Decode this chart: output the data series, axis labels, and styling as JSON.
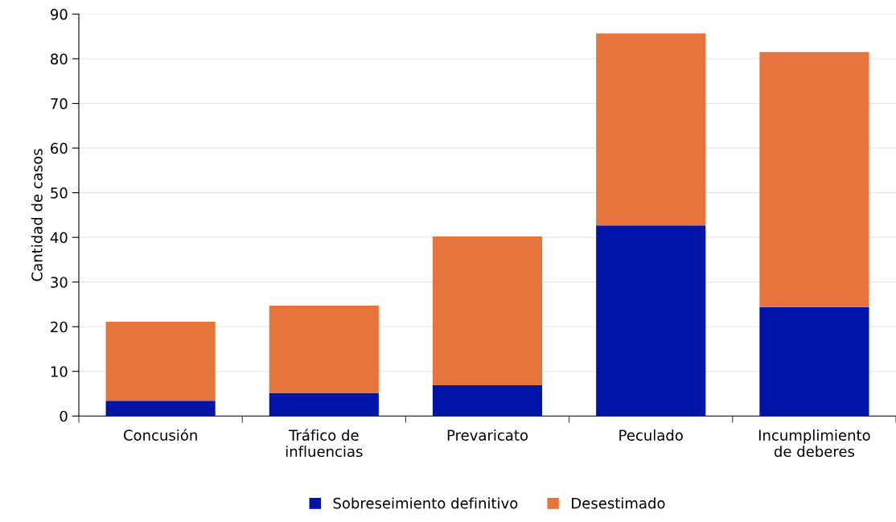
{
  "chart_data": {
    "type": "bar",
    "stacked": true,
    "ylabel": "Cantidad de casos",
    "categories": [
      "Concusión",
      "Tráfico de\ninfluencias",
      "Prevaricato",
      "Peculado",
      "Incumplimiento\nde deberes"
    ],
    "series": [
      {
        "name": "Sobreseimiento definitivo",
        "color": "#0014a8",
        "values": [
          3.4,
          5.2,
          6.9,
          42.7,
          24.4
        ]
      },
      {
        "name": "Desestimado",
        "color": "#e8743d",
        "values": [
          17.7,
          19.5,
          33.3,
          43.0,
          57.1
        ]
      }
    ],
    "ylim": [
      0,
      90
    ],
    "yticks": [
      0,
      10,
      20,
      30,
      40,
      50,
      60,
      70,
      80,
      90
    ],
    "grid": "y",
    "legend": "bottom"
  }
}
